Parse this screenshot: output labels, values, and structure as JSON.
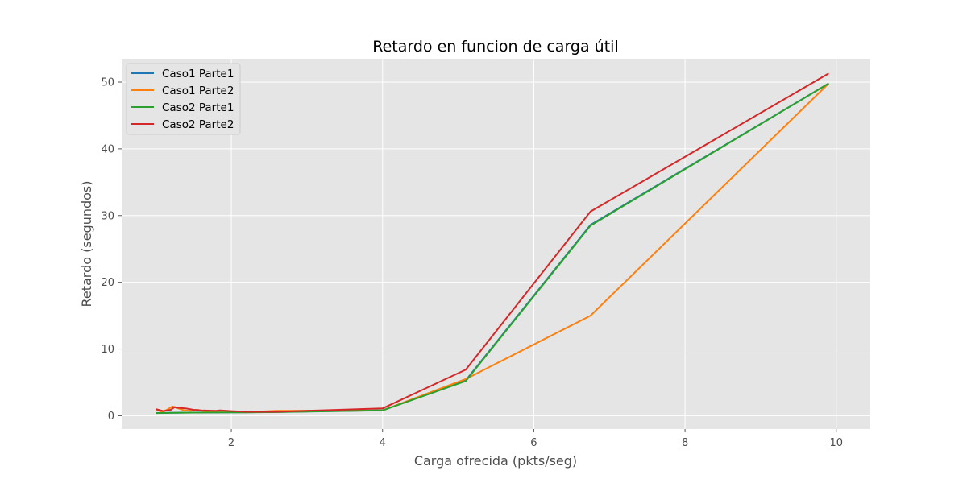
{
  "chart_data": {
    "type": "line",
    "title": "Retardo en funcion de carga útil",
    "xlabel": "Carga ofrecida (pkts/seg)",
    "ylabel": "Retardo (segundos)",
    "xlim": [
      0.55,
      10.45
    ],
    "ylim": [
      -2,
      53.5
    ],
    "xticks": [
      2,
      4,
      6,
      8,
      10
    ],
    "yticks": [
      0,
      10,
      20,
      30,
      40,
      50
    ],
    "grid": true,
    "legend_position": "top-left",
    "series": [
      {
        "name": "Caso1 Parte1",
        "color": "#1f77b4",
        "x": [
          1.0,
          1.1,
          1.2,
          1.3,
          1.4,
          1.5,
          1.6,
          1.8,
          2.0,
          2.2,
          2.6,
          4.0,
          5.1,
          6.75,
          9.9
        ],
        "y": [
          0.42,
          0.43,
          0.45,
          0.46,
          0.47,
          0.48,
          0.49,
          0.5,
          0.5,
          0.52,
          0.56,
          0.82,
          5.3,
          28.6,
          49.8
        ]
      },
      {
        "name": "Caso1 Parte2",
        "color": "#ff7f0e",
        "x": [
          1.0,
          1.08,
          1.15,
          1.22,
          1.3,
          1.38,
          1.46,
          1.55,
          1.65,
          1.8,
          1.85,
          2.0,
          2.2,
          2.6,
          4.0,
          5.1,
          6.75,
          9.9
        ],
        "y": [
          0.95,
          0.6,
          0.9,
          1.4,
          1.1,
          0.8,
          0.75,
          0.9,
          0.65,
          0.62,
          0.75,
          0.6,
          0.55,
          0.75,
          0.8,
          5.5,
          15.0,
          49.8
        ]
      },
      {
        "name": "Caso2 Parte1",
        "color": "#2ca02c",
        "x": [
          1.0,
          1.1,
          1.2,
          1.3,
          1.4,
          1.5,
          1.6,
          1.8,
          2.0,
          2.2,
          2.6,
          4.0,
          5.1,
          6.75,
          9.9
        ],
        "y": [
          0.4,
          0.42,
          0.44,
          0.45,
          0.46,
          0.47,
          0.48,
          0.49,
          0.5,
          0.51,
          0.55,
          0.8,
          5.2,
          28.5,
          49.8
        ]
      },
      {
        "name": "Caso2 Parte2",
        "color": "#d62728",
        "x": [
          1.0,
          1.1,
          1.2,
          1.25,
          1.3,
          1.4,
          1.5,
          1.6,
          1.8,
          1.85,
          2.0,
          2.2,
          2.6,
          4.0,
          5.1,
          6.75,
          9.9
        ],
        "y": [
          1.0,
          0.7,
          0.9,
          1.3,
          1.2,
          1.1,
          0.9,
          0.8,
          0.75,
          0.8,
          0.7,
          0.6,
          0.6,
          1.1,
          6.9,
          30.6,
          51.3
        ]
      }
    ]
  }
}
